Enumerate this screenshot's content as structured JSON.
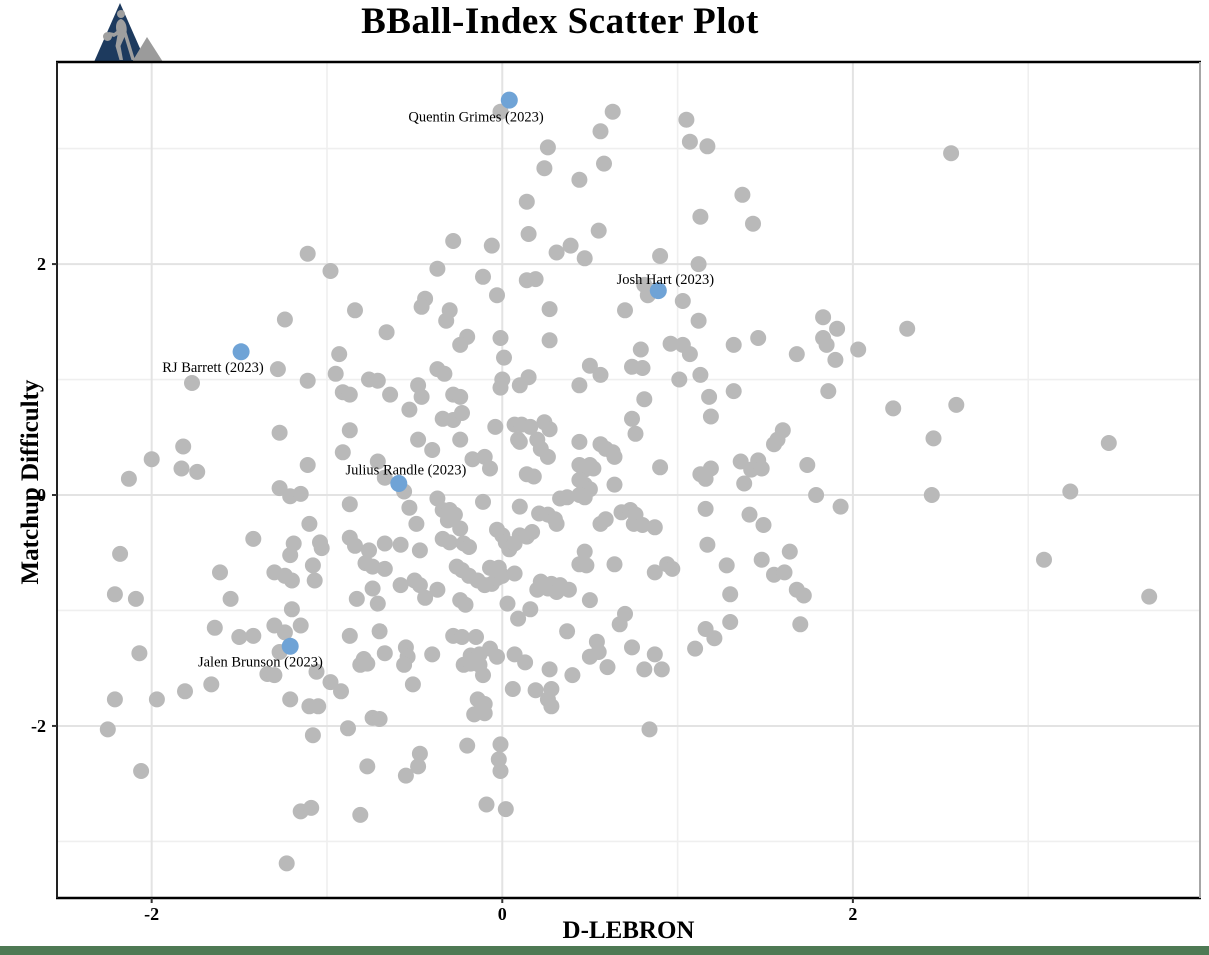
{
  "chart_data": {
    "type": "scatter",
    "title": "BBall-Index Scatter Plot",
    "xlabel": "D-LEBRON",
    "ylabel": "Matchup Difficulty",
    "xlim": [
      -2.54,
      3.98
    ],
    "ylim": [
      -3.49,
      3.75
    ],
    "x_ticks": [
      -2,
      0,
      2
    ],
    "y_ticks": [
      -2,
      0,
      2
    ],
    "x_minor_grid": [
      -1,
      1,
      3
    ],
    "y_minor_grid": [
      -3,
      -1,
      1,
      3
    ],
    "grid": "on",
    "legend": "none",
    "colors": {
      "point": "#b9b9b9",
      "highlight": "#6fa3d6",
      "major_grid": "#e3e3e3",
      "minor_grid": "#efefef",
      "axis_dark": "#000000",
      "axis_right": "#a6a6a6",
      "footer_bar": "#4e7954",
      "logo_navy": "#1d3a5e",
      "logo_gray": "#9f9f9f"
    },
    "highlighted": [
      {
        "label": "Quentin Grimes (2023)",
        "x": 0.04,
        "y": 3.42,
        "label_x": -0.15,
        "label_y": 3.28
      },
      {
        "label": "Josh Hart (2023)",
        "x": 0.89,
        "y": 1.77,
        "label_x": 0.93,
        "label_y": 1.87
      },
      {
        "label": "RJ Barrett (2023)",
        "x": -1.49,
        "y": 1.24,
        "label_x": -1.65,
        "label_y": 1.11
      },
      {
        "label": "Julius Randle (2023)",
        "x": -0.59,
        "y": 0.1,
        "label_x": -0.55,
        "label_y": 0.22
      },
      {
        "label": "Jalen Brunson (2023)",
        "x": -1.21,
        "y": -1.31,
        "label_x": -1.38,
        "label_y": -1.44
      }
    ],
    "points": [
      [
        -1.11,
        2.09
      ],
      [
        -0.98,
        1.94
      ],
      [
        -1.24,
        1.52
      ],
      [
        -0.84,
        1.6
      ],
      [
        -0.44,
        1.7
      ],
      [
        -0.46,
        1.63
      ],
      [
        -0.66,
        1.41
      ],
      [
        -0.01,
        3.32
      ],
      [
        0.63,
        3.32
      ],
      [
        1.05,
        3.25
      ],
      [
        0.56,
        3.15
      ],
      [
        1.07,
        3.06
      ],
      [
        1.17,
        3.02
      ],
      [
        0.26,
        3.01
      ],
      [
        0.24,
        2.83
      ],
      [
        0.58,
        2.87
      ],
      [
        0.44,
        2.73
      ],
      [
        0.14,
        2.54
      ],
      [
        1.37,
        2.6
      ],
      [
        1.13,
        2.41
      ],
      [
        1.43,
        2.35
      ],
      [
        0.15,
        2.26
      ],
      [
        0.55,
        2.29
      ],
      [
        -0.28,
        2.2
      ],
      [
        -0.06,
        2.16
      ],
      [
        0.31,
        2.1
      ],
      [
        0.39,
        2.16
      ],
      [
        0.47,
        2.05
      ],
      [
        0.9,
        2.07
      ],
      [
        1.12,
        2.0
      ],
      [
        -0.37,
        1.96
      ],
      [
        -0.11,
        1.89
      ],
      [
        0.14,
        1.86
      ],
      [
        0.19,
        1.87
      ],
      [
        0.81,
        1.82
      ],
      [
        0.83,
        1.73
      ],
      [
        -0.03,
        1.73
      ],
      [
        1.03,
        1.68
      ],
      [
        -0.3,
        1.6
      ],
      [
        -0.32,
        1.51
      ],
      [
        0.27,
        1.61
      ],
      [
        0.7,
        1.6
      ],
      [
        1.12,
        1.51
      ],
      [
        -0.2,
        1.37
      ],
      [
        -0.01,
        1.36
      ],
      [
        0.27,
        1.34
      ],
      [
        1.46,
        1.36
      ],
      [
        2.56,
        2.96
      ],
      [
        1.83,
        1.54
      ],
      [
        1.91,
        1.44
      ],
      [
        1.83,
        1.36
      ],
      [
        2.31,
        1.44
      ],
      [
        -1.28,
        1.09
      ],
      [
        -1.77,
        0.97
      ],
      [
        -1.11,
        0.99
      ],
      [
        -0.93,
        1.22
      ],
      [
        -0.95,
        1.05
      ],
      [
        -0.91,
        0.89
      ],
      [
        -0.87,
        0.87
      ],
      [
        -0.76,
        1.0
      ],
      [
        -0.71,
        0.99
      ],
      [
        -0.64,
        0.87
      ],
      [
        -0.48,
        0.95
      ],
      [
        -0.46,
        0.85
      ],
      [
        -0.53,
        0.74
      ],
      [
        -1.27,
        0.54
      ],
      [
        -0.87,
        0.56
      ],
      [
        -0.48,
        0.48
      ],
      [
        -0.4,
        0.39
      ],
      [
        -1.82,
        0.42
      ],
      [
        -2.0,
        0.31
      ],
      [
        -1.83,
        0.23
      ],
      [
        -1.74,
        0.2
      ],
      [
        -2.13,
        0.14
      ],
      [
        -0.91,
        0.37
      ],
      [
        -1.11,
        0.26
      ],
      [
        -0.71,
        0.29
      ],
      [
        -0.67,
        0.15
      ],
      [
        -0.56,
        0.03
      ],
      [
        -1.27,
        0.06
      ],
      [
        -1.21,
        -0.01
      ],
      [
        -1.15,
        0.01
      ],
      [
        -0.87,
        -0.08
      ],
      [
        -0.53,
        -0.11
      ],
      [
        -0.49,
        -0.25
      ],
      [
        -1.1,
        -0.25
      ],
      [
        -1.42,
        -0.38
      ],
      [
        -1.19,
        -0.42
      ],
      [
        -1.04,
        -0.41
      ],
      [
        -1.03,
        -0.46
      ],
      [
        -2.18,
        -0.51
      ],
      [
        -0.87,
        -0.37
      ],
      [
        -0.84,
        -0.44
      ],
      [
        -0.76,
        -0.48
      ],
      [
        -0.67,
        -0.42
      ],
      [
        -0.58,
        -0.43
      ],
      [
        -0.47,
        -0.48
      ],
      [
        -1.21,
        -0.52
      ],
      [
        -0.78,
        -0.59
      ],
      [
        -0.74,
        -0.62
      ],
      [
        -0.67,
        -0.64
      ],
      [
        -1.61,
        -0.67
      ],
      [
        -1.3,
        -0.67
      ],
      [
        -1.24,
        -0.7
      ],
      [
        -1.2,
        -0.74
      ],
      [
        -1.08,
        -0.61
      ],
      [
        -1.07,
        -0.74
      ],
      [
        -2.21,
        -0.86
      ],
      [
        -2.09,
        -0.9
      ],
      [
        -0.74,
        -0.81
      ],
      [
        -0.5,
        -0.74
      ],
      [
        -0.47,
        -0.78
      ],
      [
        -0.83,
        -0.9
      ],
      [
        -0.71,
        -0.94
      ],
      [
        -1.55,
        -0.9
      ],
      [
        -1.2,
        -0.99
      ],
      [
        -0.58,
        -0.78
      ],
      [
        -0.44,
        -0.89
      ],
      [
        -0.24,
        1.3
      ],
      [
        0.79,
        1.26
      ],
      [
        0.96,
        1.31
      ],
      [
        1.03,
        1.3
      ],
      [
        1.07,
        1.22
      ],
      [
        1.32,
        1.3
      ],
      [
        1.68,
        1.22
      ],
      [
        0.01,
        1.19
      ],
      [
        0.5,
        1.12
      ],
      [
        0.56,
        1.04
      ],
      [
        0.74,
        1.11
      ],
      [
        0.8,
        1.1
      ],
      [
        1.01,
        1.0
      ],
      [
        1.13,
        1.04
      ],
      [
        0.0,
        1.0
      ],
      [
        -0.01,
        0.93
      ],
      [
        0.1,
        0.95
      ],
      [
        0.15,
        1.02
      ],
      [
        0.44,
        0.95
      ],
      [
        -0.37,
        1.09
      ],
      [
        -0.33,
        1.05
      ],
      [
        -0.28,
        0.87
      ],
      [
        -0.24,
        0.85
      ],
      [
        -0.34,
        0.66
      ],
      [
        -0.28,
        0.65
      ],
      [
        -0.23,
        0.71
      ],
      [
        0.81,
        0.83
      ],
      [
        1.18,
        0.85
      ],
      [
        1.32,
        0.9
      ],
      [
        1.19,
        0.68
      ],
      [
        -0.04,
        0.59
      ],
      [
        0.07,
        0.61
      ],
      [
        0.11,
        0.61
      ],
      [
        0.16,
        0.59
      ],
      [
        0.09,
        0.48
      ],
      [
        0.1,
        0.46
      ],
      [
        0.24,
        0.63
      ],
      [
        0.27,
        0.57
      ],
      [
        -0.24,
        0.48
      ],
      [
        -0.17,
        0.31
      ],
      [
        -0.1,
        0.33
      ],
      [
        0.2,
        0.48
      ],
      [
        0.22,
        0.4
      ],
      [
        0.26,
        0.33
      ],
      [
        0.44,
        0.46
      ],
      [
        0.56,
        0.44
      ],
      [
        0.59,
        0.4
      ],
      [
        0.63,
        0.37
      ],
      [
        0.64,
        0.33
      ],
      [
        0.74,
        0.66
      ],
      [
        0.76,
        0.53
      ],
      [
        -0.07,
        0.23
      ],
      [
        0.14,
        0.18
      ],
      [
        0.18,
        0.16
      ],
      [
        0.44,
        0.26
      ],
      [
        0.47,
        0.22
      ],
      [
        0.5,
        0.26
      ],
      [
        0.52,
        0.23
      ],
      [
        0.44,
        0.13
      ],
      [
        0.47,
        0.09
      ],
      [
        0.5,
        0.05
      ],
      [
        0.64,
        0.09
      ],
      [
        0.9,
        0.24
      ],
      [
        1.13,
        0.18
      ],
      [
        1.16,
        0.14
      ],
      [
        1.19,
        0.23
      ],
      [
        1.36,
        0.29
      ],
      [
        1.46,
        0.3
      ],
      [
        1.38,
        0.1
      ],
      [
        1.42,
        0.22
      ],
      [
        1.48,
        0.23
      ],
      [
        1.57,
        0.48
      ],
      [
        1.6,
        0.56
      ],
      [
        1.55,
        0.44
      ],
      [
        1.74,
        0.26
      ],
      [
        -0.11,
        -0.06
      ],
      [
        0.1,
        -0.1
      ],
      [
        0.21,
        -0.16
      ],
      [
        0.26,
        -0.17
      ],
      [
        0.3,
        -0.21
      ],
      [
        0.31,
        -0.25
      ],
      [
        0.33,
        -0.03
      ],
      [
        0.37,
        -0.02
      ],
      [
        0.44,
        0.0
      ],
      [
        0.47,
        -0.02
      ],
      [
        0.56,
        -0.25
      ],
      [
        0.59,
        -0.21
      ],
      [
        0.68,
        -0.15
      ],
      [
        0.73,
        -0.13
      ],
      [
        0.76,
        -0.17
      ],
      [
        0.75,
        -0.25
      ],
      [
        0.8,
        -0.26
      ],
      [
        0.87,
        -0.28
      ],
      [
        1.16,
        -0.12
      ],
      [
        1.41,
        -0.17
      ],
      [
        1.49,
        -0.26
      ],
      [
        -0.37,
        -0.03
      ],
      [
        -0.34,
        -0.13
      ],
      [
        -0.3,
        -0.13
      ],
      [
        -0.27,
        -0.17
      ],
      [
        -0.24,
        -0.29
      ],
      [
        -0.31,
        -0.22
      ],
      [
        -0.34,
        -0.38
      ],
      [
        -0.3,
        -0.41
      ],
      [
        -0.22,
        -0.42
      ],
      [
        -0.19,
        -0.45
      ],
      [
        -0.03,
        -0.3
      ],
      [
        0.0,
        -0.35
      ],
      [
        0.02,
        -0.41
      ],
      [
        0.04,
        -0.47
      ],
      [
        0.07,
        -0.42
      ],
      [
        0.1,
        -0.35
      ],
      [
        0.14,
        -0.36
      ],
      [
        0.17,
        -0.32
      ],
      [
        0.47,
        -0.49
      ],
      [
        0.64,
        -0.6
      ],
      [
        0.44,
        -0.6
      ],
      [
        0.48,
        -0.61
      ],
      [
        0.87,
        -0.67
      ],
      [
        0.94,
        -0.6
      ],
      [
        0.97,
        -0.64
      ],
      [
        1.17,
        -0.43
      ],
      [
        1.28,
        -0.61
      ],
      [
        1.48,
        -0.56
      ],
      [
        1.55,
        -0.69
      ],
      [
        1.61,
        -0.67
      ],
      [
        1.64,
        -0.49
      ],
      [
        -0.26,
        -0.62
      ],
      [
        -0.23,
        -0.65
      ],
      [
        -0.19,
        -0.7
      ],
      [
        -0.14,
        -0.74
      ],
      [
        -0.1,
        -0.78
      ],
      [
        -0.06,
        -0.77
      ],
      [
        -0.03,
        -0.72
      ],
      [
        0.0,
        -0.7
      ],
      [
        -0.02,
        -0.63
      ],
      [
        -0.07,
        -0.63
      ],
      [
        0.07,
        -0.68
      ],
      [
        0.22,
        -0.75
      ],
      [
        0.26,
        -0.81
      ],
      [
        0.28,
        -0.77
      ],
      [
        0.31,
        -0.84
      ],
      [
        0.33,
        -0.78
      ],
      [
        0.38,
        -0.82
      ],
      [
        0.2,
        -0.82
      ],
      [
        0.5,
        -0.91
      ],
      [
        0.7,
        -1.03
      ],
      [
        1.3,
        -0.86
      ],
      [
        1.68,
        -0.82
      ],
      [
        1.72,
        -0.87
      ],
      [
        0.03,
        -0.94
      ],
      [
        0.16,
        -0.99
      ],
      [
        -0.24,
        -0.91
      ],
      [
        -0.21,
        -0.95
      ],
      [
        -0.37,
        -0.82
      ],
      [
        0.67,
        -1.12
      ],
      [
        0.09,
        -1.07
      ],
      [
        1.85,
        1.3
      ],
      [
        2.03,
        1.26
      ],
      [
        1.9,
        1.17
      ],
      [
        1.86,
        0.9
      ],
      [
        2.23,
        0.75
      ],
      [
        2.59,
        0.78
      ],
      [
        2.46,
        0.49
      ],
      [
        3.46,
        0.45
      ],
      [
        2.45,
        0.0
      ],
      [
        3.24,
        0.03
      ],
      [
        1.79,
        0.0
      ],
      [
        1.93,
        -0.1
      ],
      [
        3.09,
        -0.56
      ],
      [
        3.69,
        -0.88
      ],
      [
        -1.64,
        -1.15
      ],
      [
        -1.5,
        -1.23
      ],
      [
        -1.42,
        -1.22
      ],
      [
        -1.3,
        -1.13
      ],
      [
        -1.24,
        -1.19
      ],
      [
        -1.15,
        -1.13
      ],
      [
        -1.27,
        -1.36
      ],
      [
        -0.87,
        -1.22
      ],
      [
        -0.7,
        -1.18
      ],
      [
        -2.07,
        -1.37
      ],
      [
        -0.79,
        -1.42
      ],
      [
        -0.77,
        -1.46
      ],
      [
        -0.81,
        -1.47
      ],
      [
        -0.67,
        -1.37
      ],
      [
        -0.55,
        -1.32
      ],
      [
        -0.54,
        -1.4
      ],
      [
        -0.56,
        -1.47
      ],
      [
        -0.4,
        -1.38
      ],
      [
        -1.06,
        -1.53
      ],
      [
        -1.34,
        -1.55
      ],
      [
        -1.3,
        -1.56
      ],
      [
        -0.98,
        -1.62
      ],
      [
        -0.92,
        -1.7
      ],
      [
        -1.66,
        -1.64
      ],
      [
        -1.81,
        -1.7
      ],
      [
        -2.21,
        -1.77
      ],
      [
        -1.97,
        -1.77
      ],
      [
        -1.21,
        -1.77
      ],
      [
        -1.1,
        -1.83
      ],
      [
        -1.05,
        -1.83
      ],
      [
        -0.51,
        -1.64
      ],
      [
        -0.74,
        -1.93
      ],
      [
        -0.7,
        -1.94
      ],
      [
        -2.25,
        -2.03
      ],
      [
        -1.08,
        -2.08
      ],
      [
        -0.88,
        -2.02
      ],
      [
        -0.47,
        -2.24
      ],
      [
        -0.48,
        -2.35
      ],
      [
        -0.55,
        -2.43
      ],
      [
        -0.77,
        -2.35
      ],
      [
        -2.06,
        -2.39
      ],
      [
        -1.15,
        -2.74
      ],
      [
        -1.09,
        -2.71
      ],
      [
        -0.81,
        -2.77
      ],
      [
        -1.23,
        -3.19
      ],
      [
        -0.28,
        -1.22
      ],
      [
        -0.23,
        -1.23
      ],
      [
        -0.15,
        -1.23
      ],
      [
        -0.18,
        -1.39
      ],
      [
        -0.13,
        -1.38
      ],
      [
        -0.07,
        -1.33
      ],
      [
        -0.03,
        -1.4
      ],
      [
        -0.22,
        -1.47
      ],
      [
        -0.18,
        -1.46
      ],
      [
        -0.13,
        -1.47
      ],
      [
        -0.11,
        -1.56
      ],
      [
        0.07,
        -1.38
      ],
      [
        0.13,
        -1.45
      ],
      [
        0.37,
        -1.18
      ],
      [
        0.27,
        -1.51
      ],
      [
        0.4,
        -1.56
      ],
      [
        0.06,
        -1.68
      ],
      [
        0.19,
        -1.69
      ],
      [
        0.28,
        -1.68
      ],
      [
        0.26,
        -1.77
      ],
      [
        0.28,
        -1.83
      ],
      [
        -0.14,
        -1.77
      ],
      [
        -0.1,
        -1.81
      ],
      [
        -0.16,
        -1.9
      ],
      [
        -0.1,
        -1.89
      ],
      [
        0.5,
        -1.4
      ],
      [
        0.54,
        -1.27
      ],
      [
        0.55,
        -1.36
      ],
      [
        0.6,
        -1.49
      ],
      [
        0.74,
        -1.32
      ],
      [
        0.87,
        -1.38
      ],
      [
        0.81,
        -1.51
      ],
      [
        0.91,
        -1.51
      ],
      [
        1.1,
        -1.33
      ],
      [
        1.16,
        -1.16
      ],
      [
        1.21,
        -1.24
      ],
      [
        1.3,
        -1.1
      ],
      [
        1.7,
        -1.12
      ],
      [
        0.84,
        -2.03
      ],
      [
        -0.2,
        -2.17
      ],
      [
        -0.01,
        -2.16
      ],
      [
        -0.02,
        -2.29
      ],
      [
        -0.01,
        -2.39
      ],
      [
        -0.09,
        -2.68
      ],
      [
        0.02,
        -2.72
      ]
    ]
  },
  "logo": {
    "icon": "basketball-player-logo"
  },
  "footer": {}
}
